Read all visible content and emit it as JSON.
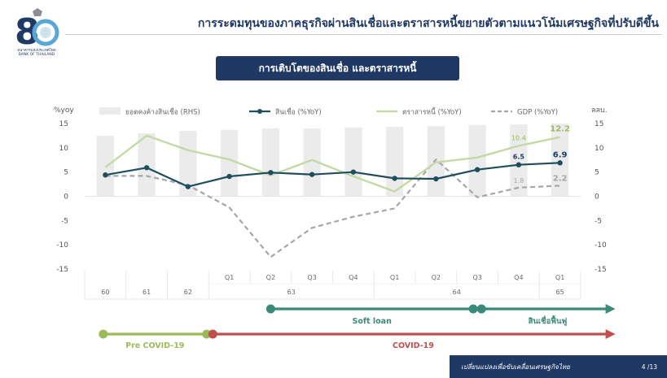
{
  "header": {
    "title": "การระดมทุนของภาคธุรกิจผ่านสินเชื่อและตราสารหนี้ขยายตัวตามแนวโน้มเศรษฐกิจที่ปรับดีขึ้น",
    "logo_text": "ธนาคารแห่งประเทศไทย",
    "logo_subtext": "BANK OF THAILAND"
  },
  "subtitle": "การเติบโตของสินเชื่อ และตราสารหนี้",
  "colors": {
    "navy": "#1f3864",
    "loan_line": "#1e4d5c",
    "bond_line": "#c5d9a4",
    "gdp_line": "#a6a6a6",
    "bar": "#ebebeb",
    "soft_loan": "#3a8a7a",
    "covid": "#c0504d",
    "pre_covid": "#9bbb59"
  },
  "chart_data": {
    "type": "bar+line",
    "y_left_label": "%yoy",
    "y_right_label": "ลลบ.",
    "ylim": [
      -15,
      15
    ],
    "y_ticks": [
      15,
      10,
      5,
      0,
      -5,
      -10,
      -15
    ],
    "categories": [
      "60",
      "61",
      "62",
      "Q1 63",
      "Q2 63",
      "Q3 63",
      "Q4 63",
      "Q1 64",
      "Q2 64",
      "Q3 64",
      "Q4 64",
      "Q1 65"
    ],
    "quarter_labels": [
      "",
      "",
      "",
      "Q1",
      "Q2",
      "Q3",
      "Q4",
      "Q1",
      "Q2",
      "Q3",
      "Q4",
      "Q1"
    ],
    "year_labels": [
      {
        "label": "60",
        "start": 0,
        "end": 0
      },
      {
        "label": "61",
        "start": 1,
        "end": 1
      },
      {
        "label": "62",
        "start": 2,
        "end": 2
      },
      {
        "label": "63",
        "start": 3,
        "end": 6
      },
      {
        "label": "64",
        "start": 7,
        "end": 10
      },
      {
        "label": "65",
        "start": 11,
        "end": 11
      }
    ],
    "legend": [
      {
        "key": "bars",
        "label": "ยอดคงค้างสินเชื่อ (RHS)"
      },
      {
        "key": "loan",
        "label": "สินเชื่อ (%YoY)"
      },
      {
        "key": "bond",
        "label": "ตราสารหนี้ (%YoY)"
      },
      {
        "key": "gdp",
        "label": "GDP (%YoY)"
      }
    ],
    "series": [
      {
        "key": "bars",
        "name": "ยอดคงค้างสินเชื่อ (RHS)",
        "values": [
          12.5,
          13.0,
          13.5,
          13.7,
          14.0,
          14.0,
          14.2,
          14.3,
          14.5,
          14.7,
          14.8,
          15.0
        ]
      },
      {
        "key": "loan",
        "name": "สินเชื่อ (%YoY)",
        "values": [
          4.4,
          5.9,
          2.0,
          4.1,
          4.9,
          4.5,
          5.0,
          3.7,
          3.6,
          5.5,
          6.5,
          6.9
        ]
      },
      {
        "key": "bond",
        "name": "ตราสารหนี้ (%YoY)",
        "values": [
          6.0,
          12.5,
          9.5,
          7.6,
          4.3,
          7.5,
          4.1,
          1.0,
          7.0,
          8.0,
          10.4,
          12.2
        ]
      },
      {
        "key": "gdp",
        "name": "GDP (%YoY)",
        "values": [
          4.2,
          4.2,
          2.3,
          -2.3,
          -12.5,
          -6.5,
          -4.2,
          -2.5,
          7.6,
          -0.2,
          1.8,
          2.2
        ]
      }
    ],
    "data_labels": [
      {
        "series": "bond",
        "index": 10,
        "text": "10.4"
      },
      {
        "series": "bond",
        "index": 11,
        "text": "12.2"
      },
      {
        "series": "loan",
        "index": 10,
        "text": "6.5"
      },
      {
        "series": "loan",
        "index": 11,
        "text": "6.9"
      },
      {
        "series": "gdp",
        "index": 10,
        "text": "1.8"
      },
      {
        "series": "gdp",
        "index": 11,
        "text": "2.2"
      }
    ]
  },
  "timeline": [
    {
      "label": "Soft loan",
      "start": 4.0,
      "end": 8.9,
      "end_marker": "dot",
      "color": "soft_loan",
      "row": 0
    },
    {
      "label": "สินเชื่อฟื้นฟู",
      "start": 9.1,
      "end": 12.3,
      "end_marker": "arrow",
      "color": "soft_loan",
      "row": 0
    },
    {
      "label": "Pre COVID-19",
      "start": -0.05,
      "end": 2.45,
      "end_marker": "dot",
      "color": "pre_covid",
      "row": 1
    },
    {
      "label": "COVID-19",
      "start": 2.6,
      "end": 12.3,
      "end_marker": "arrow",
      "color": "covid",
      "row": 1
    }
  ],
  "footer": {
    "text": "เปลี่ยนแปลงเพื่อขับเคลื่อนเศรษฐกิจไทย",
    "page": "4 /13"
  }
}
